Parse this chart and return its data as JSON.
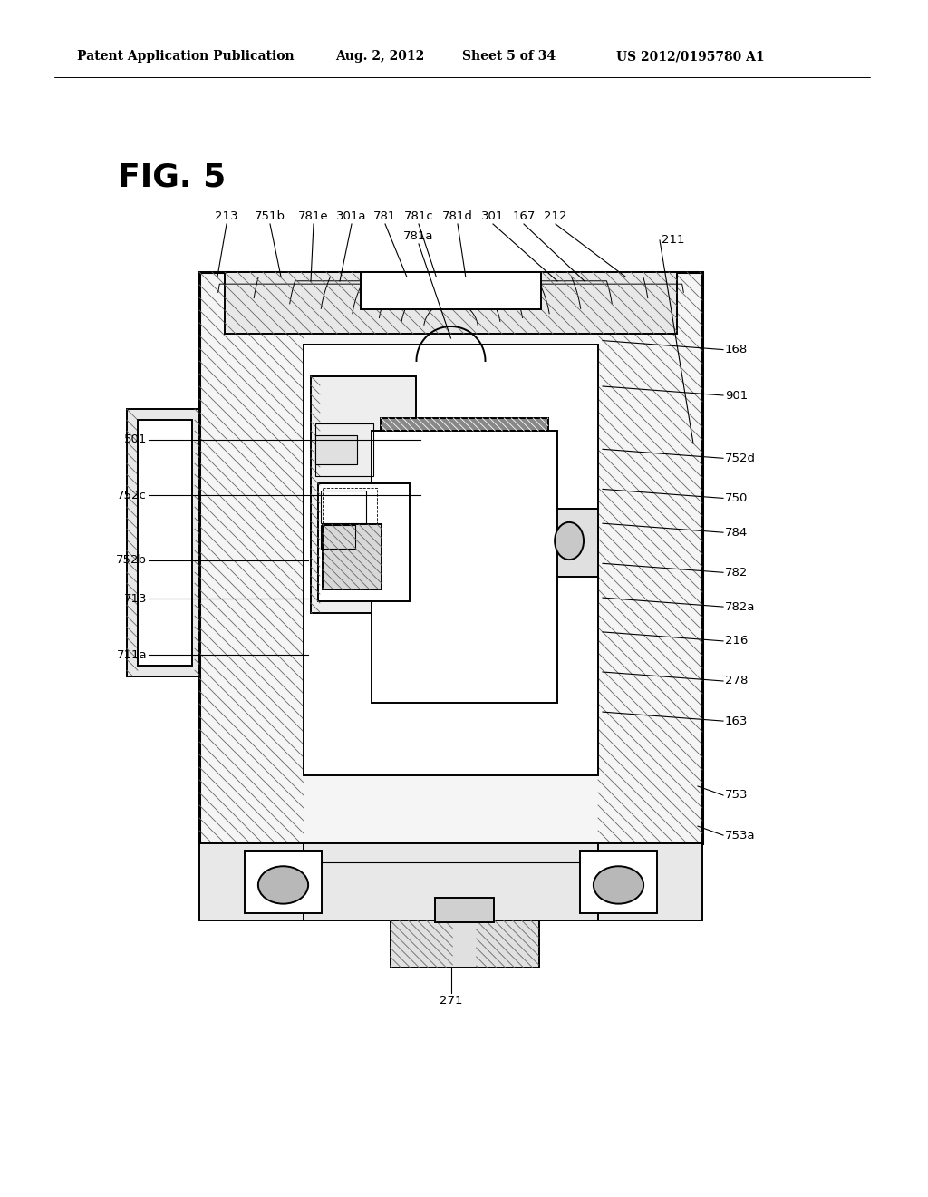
{
  "background_color": "#ffffff",
  "header_text": "Patent Application Publication",
  "header_date": "Aug. 2, 2012",
  "header_sheet": "Sheet 5 of 34",
  "header_patent": "US 2012/0195780 A1",
  "fig_label": "FIG. 5",
  "line_color": "#000000",
  "hatch_color": "#666666"
}
